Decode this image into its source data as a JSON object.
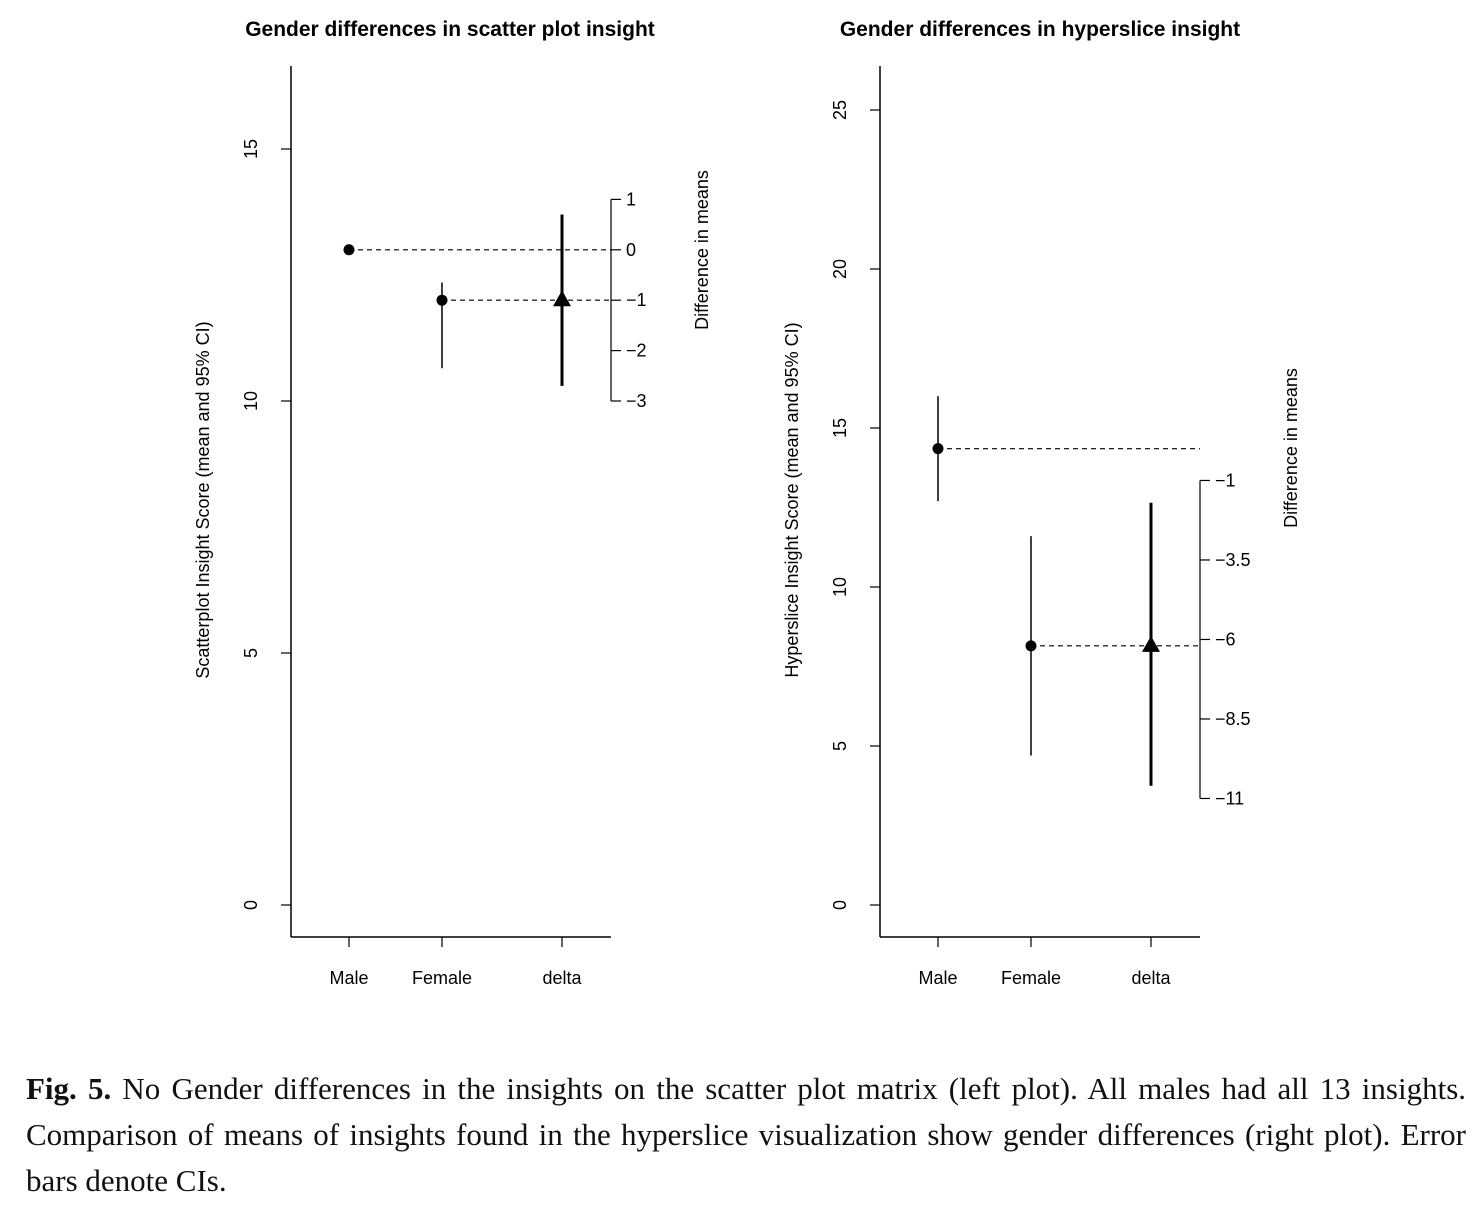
{
  "chart_data": [
    {
      "type": "scatter",
      "title": "Gender differences in scatter plot insight",
      "ylabel": "Scatterplot Insight Score (mean and 95% CI)",
      "ylabel_right": "Difference in means",
      "categories": [
        "Male",
        "Female",
        "delta"
      ],
      "ylim": [
        0,
        15
      ],
      "yticks": [
        0,
        5,
        10,
        15
      ],
      "yticks_right": [
        1,
        0,
        -1,
        -2,
        -3
      ],
      "grid": false,
      "points": [
        {
          "category": "Male",
          "mean": 13.0,
          "ci": null
        },
        {
          "category": "Female",
          "mean": 12.0,
          "ci": [
            10.65,
            12.35
          ]
        }
      ],
      "delta": {
        "mean": -1.0,
        "ci": [
          -2.7,
          0.7
        ]
      }
    },
    {
      "type": "scatter",
      "title": "Gender differences in hyperslice insight",
      "ylabel": "Hyperslice Insight Score (mean and 95% CI)",
      "ylabel_right": "Difference in means",
      "categories": [
        "Male",
        "Female",
        "delta"
      ],
      "ylim": [
        0,
        25
      ],
      "yticks": [
        0,
        5,
        10,
        15,
        20,
        25
      ],
      "yticks_right": [
        -1,
        -3.5,
        -6,
        -8.5,
        -11
      ],
      "grid": false,
      "points": [
        {
          "category": "Male",
          "mean": 14.35,
          "ci": [
            12.7,
            16.0
          ]
        },
        {
          "category": "Female",
          "mean": 8.15,
          "ci": [
            4.7,
            11.6
          ]
        }
      ],
      "delta": {
        "mean": -6.2,
        "ci": [
          -10.6,
          -1.7
        ]
      }
    }
  ],
  "caption": {
    "label": "Fig. 5.",
    "text": "No Gender differences in the insights on the scatter plot matrix (left plot). All males had all 13 insights. Comparison of means of insights found in the hyperslice visualization show gender differences (right plot). Error bars denote CIs."
  }
}
